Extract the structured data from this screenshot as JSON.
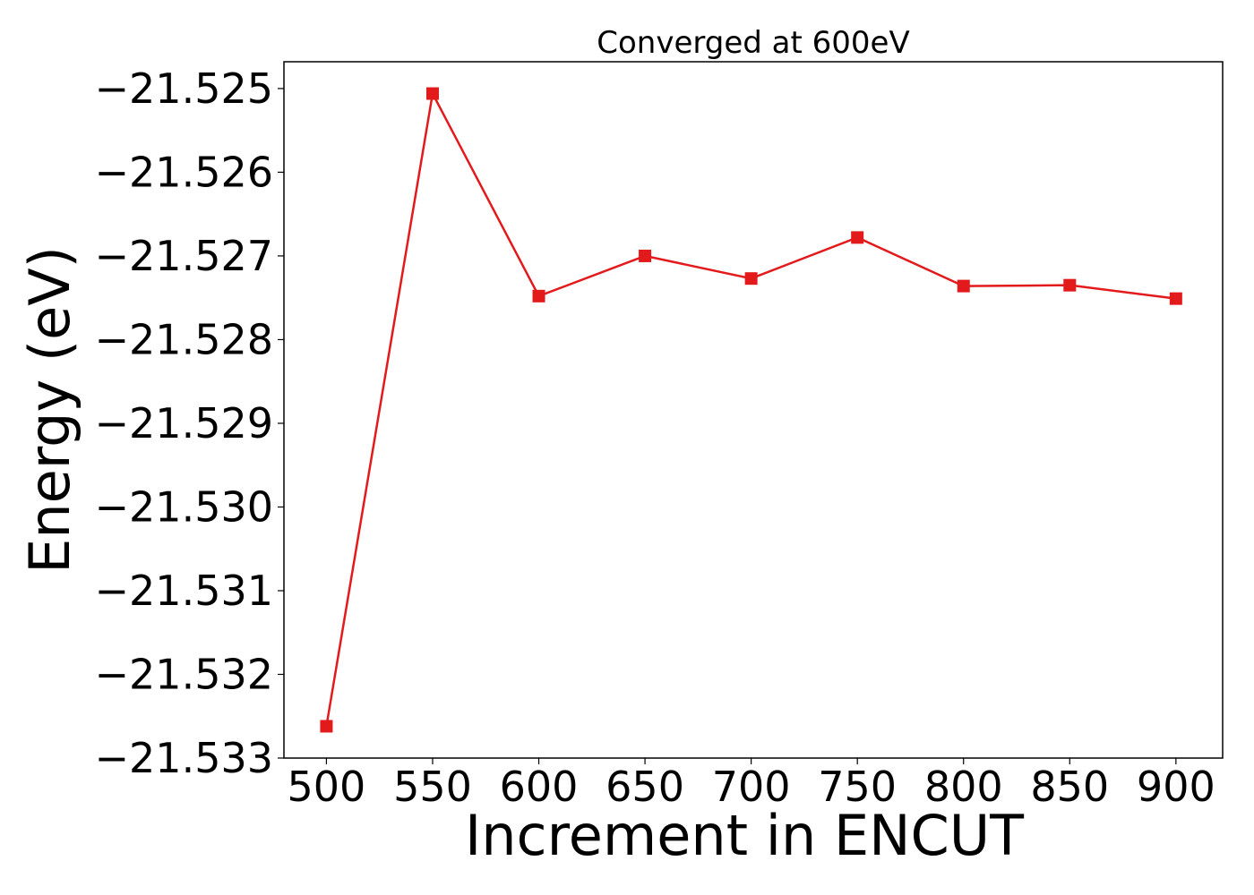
{
  "chart_data": {
    "type": "line",
    "title": "Converged at 600eV",
    "xlabel": "Increment in ENCUT",
    "ylabel": "Energy (eV)",
    "x": [
      500,
      550,
      600,
      650,
      700,
      750,
      800,
      850,
      900
    ],
    "series": [
      {
        "values": [
          -21.53262,
          -21.52506,
          -21.52748,
          -21.527,
          -21.52727,
          -21.52678,
          -21.52736,
          -21.52735,
          -21.52751
        ],
        "color": "#e31a1c",
        "marker": "square"
      }
    ],
    "xticks": [
      500,
      550,
      600,
      650,
      700,
      750,
      800,
      850,
      900
    ],
    "xtick_labels": [
      "500",
      "550",
      "600",
      "650",
      "700",
      "750",
      "800",
      "850",
      "900"
    ],
    "yticks": [
      -21.525,
      -21.526,
      -21.527,
      -21.528,
      -21.529,
      -21.53,
      -21.531,
      -21.532,
      -21.533
    ],
    "ytick_labels": [
      "−21.525",
      "−21.526",
      "−21.527",
      "−21.528",
      "−21.529",
      "−21.530",
      "−21.531",
      "−21.532",
      "−21.533"
    ],
    "xlim": [
      480,
      922
    ],
    "ylim": [
      -21.533,
      -21.52468
    ],
    "grid": false,
    "legend": "none"
  }
}
